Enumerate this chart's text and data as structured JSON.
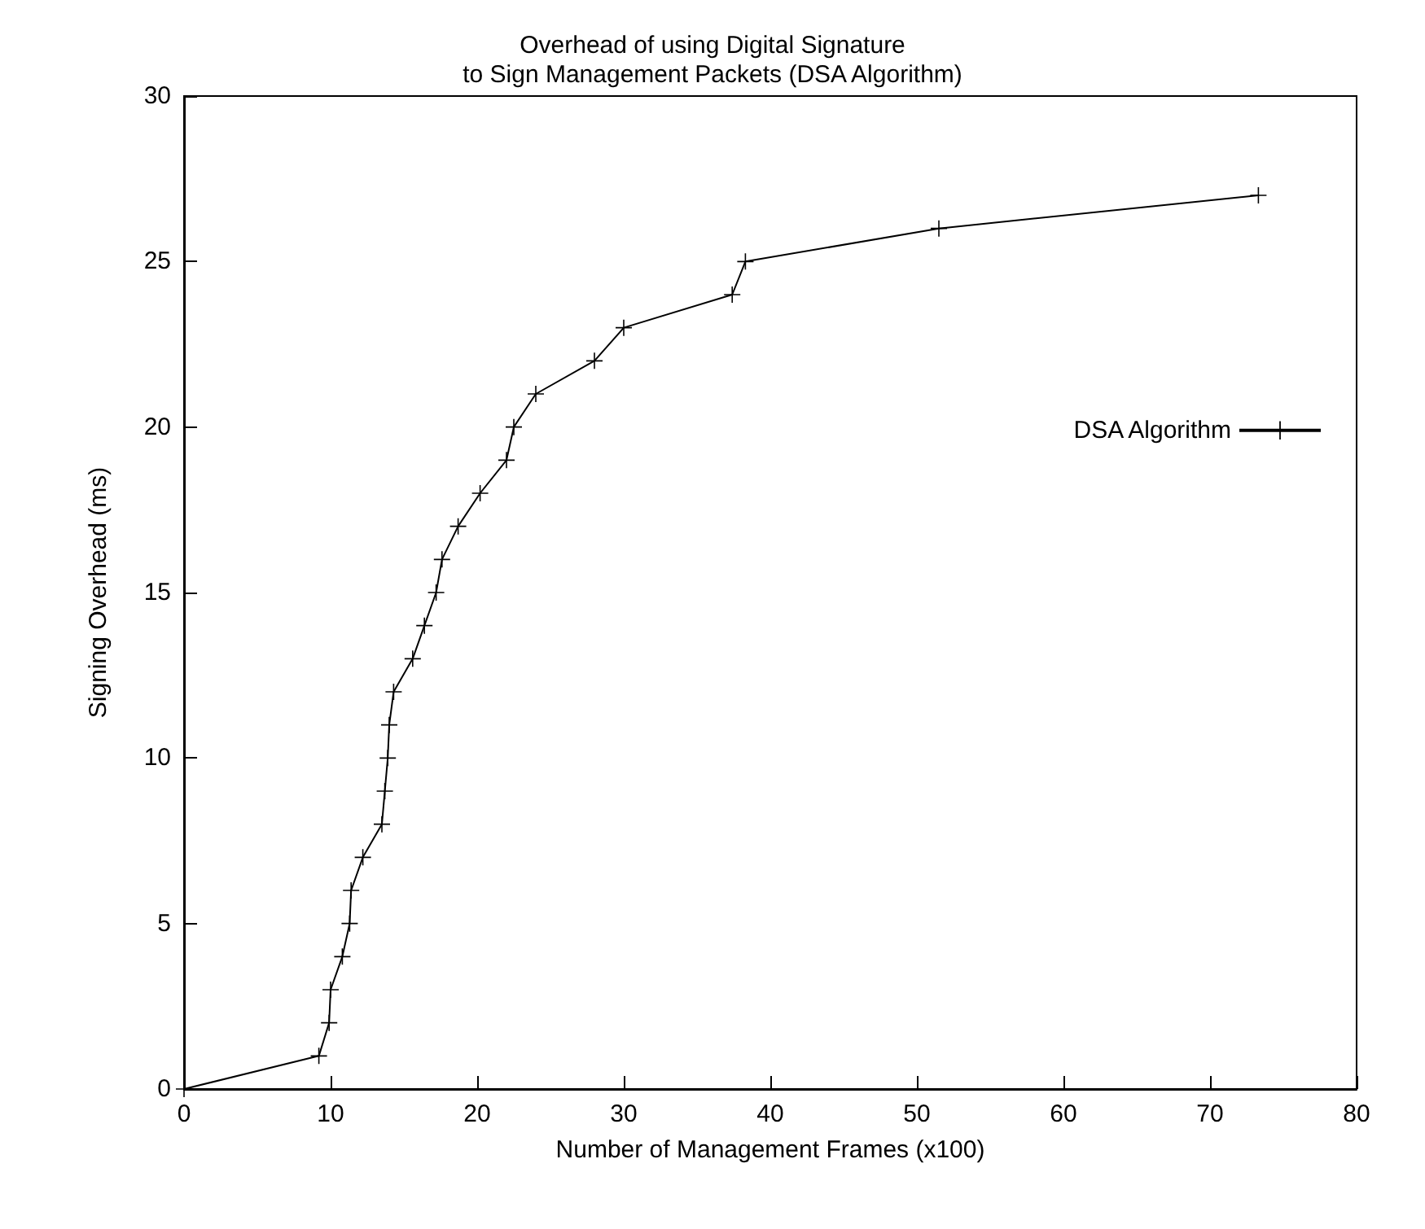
{
  "chart_data": {
    "type": "line",
    "title": "Overhead of using Digital Signature\nto Sign Management Packets (DSA Algorithm)",
    "xlabel": "Number of Management Frames (x100)",
    "ylabel": "Signing Overhead (ms)",
    "x": [
      0,
      9.2,
      9.9,
      10.0,
      10.8,
      11.3,
      11.4,
      12.2,
      13.5,
      13.7,
      13.9,
      14.0,
      14.3,
      15.6,
      16.4,
      17.2,
      17.6,
      18.7,
      20.2,
      22.0,
      22.5,
      24.0,
      28.0,
      30.0,
      37.4,
      38.3,
      51.5,
      73.3
    ],
    "series": [
      {
        "name": "DSA Algorithm",
        "color": "#000000",
        "values": [
          0,
          1,
          2,
          3,
          4,
          5,
          6,
          7,
          8,
          9,
          10,
          11,
          12,
          13,
          14,
          15,
          16,
          17,
          18,
          19,
          20,
          21,
          22,
          23,
          24,
          25,
          26,
          27
        ]
      }
    ],
    "xlim": [
      0,
      80
    ],
    "xticks": [
      0,
      10,
      20,
      30,
      40,
      50,
      60,
      70,
      80
    ],
    "ylim": [
      0,
      30
    ],
    "yticks": [
      0,
      5,
      10,
      15,
      20,
      25,
      30
    ],
    "grid": false,
    "legend": "right",
    "marker": "cross",
    "line_style": "solid"
  }
}
